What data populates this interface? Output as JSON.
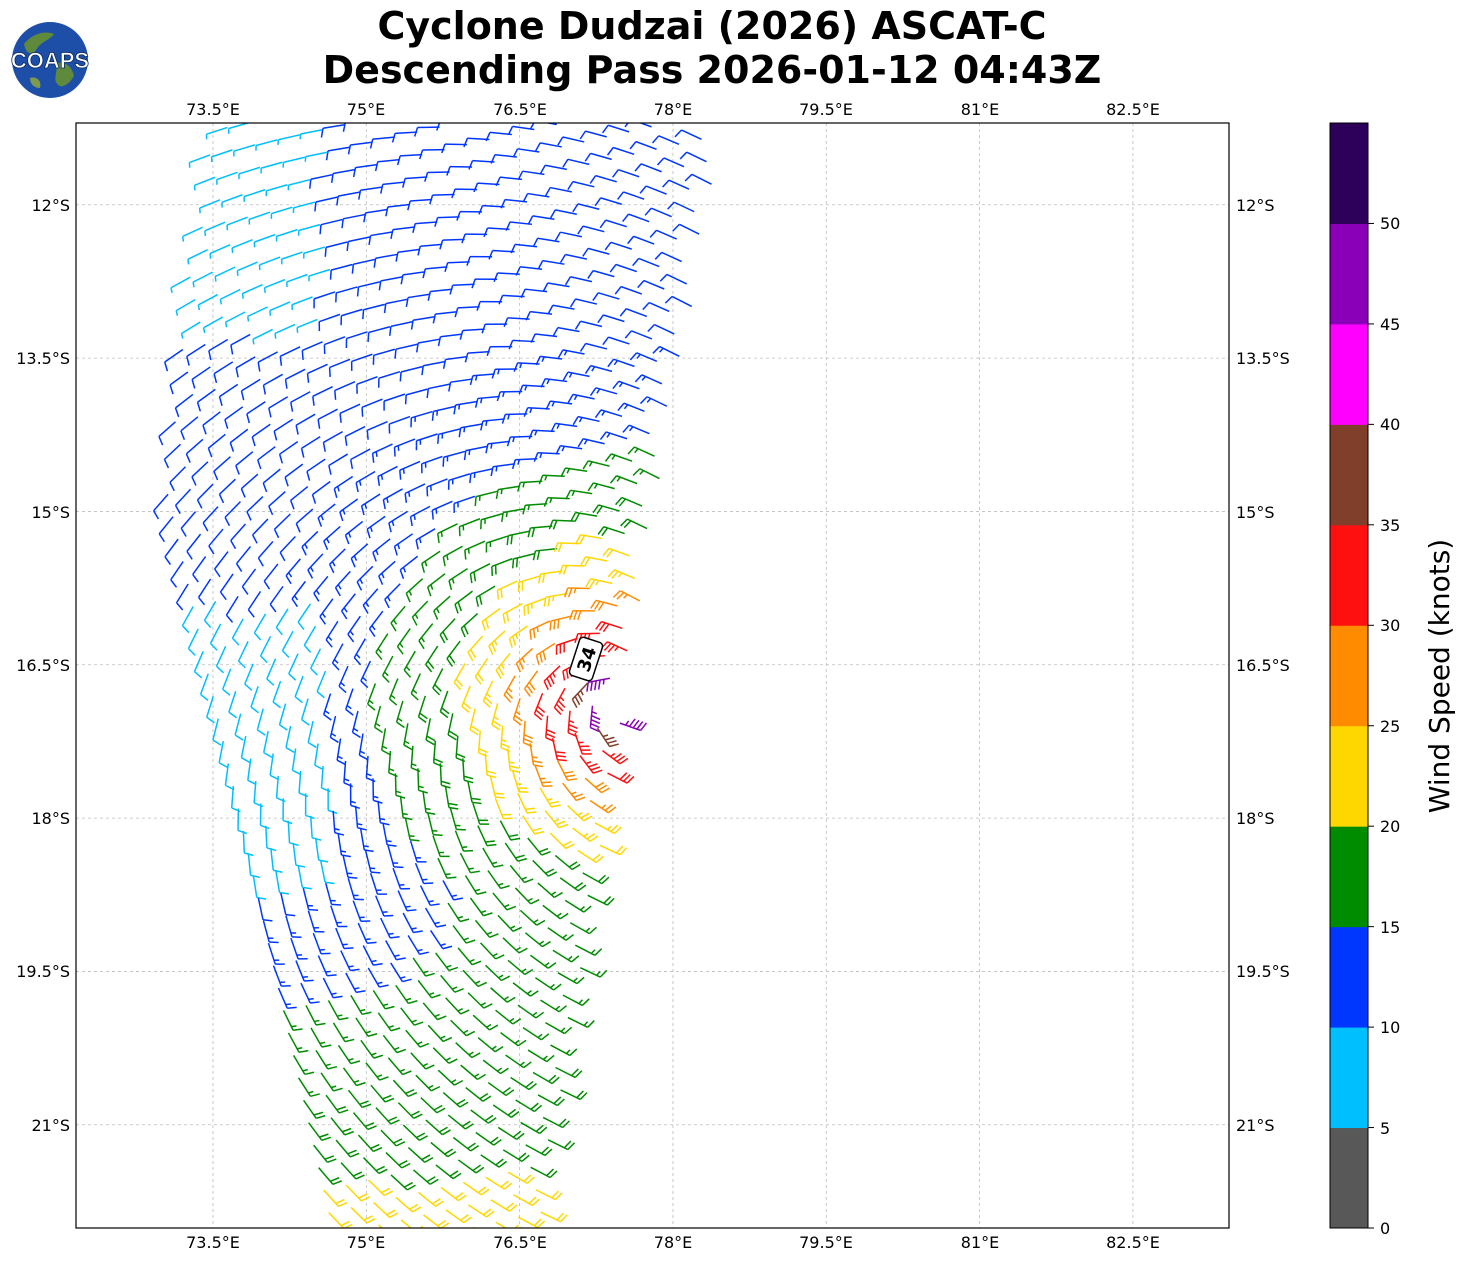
{
  "title": {
    "line1": "Cyclone Dudzai (2026) ASCAT-C",
    "line2": "Descending Pass 2026-01-12 04:43Z"
  },
  "logo": {
    "text": "COAPS",
    "icon": "globe-logo-icon"
  },
  "axes": {
    "lon_ticks": [
      "73.5°E",
      "75°E",
      "76.5°E",
      "78°E",
      "79.5°E",
      "81°E",
      "82.5°E"
    ],
    "lat_ticks": [
      "12°S",
      "13.5°S",
      "15°S",
      "16.5°S",
      "18°S",
      "19.5°S",
      "21°S"
    ],
    "lon_range": [
      72.16,
      83.44
    ],
    "lat_range": [
      -22.01,
      -11.2
    ],
    "grid": true
  },
  "storm_marker": {
    "label": "34"
  },
  "colorbar": {
    "label": "Wind Speed (knots)",
    "tick_labels": [
      "0",
      "5",
      "10",
      "15",
      "20",
      "25",
      "30",
      "35",
      "40",
      "45",
      "50"
    ],
    "bins": [
      {
        "min": 0,
        "max": 5,
        "color": "#585858"
      },
      {
        "min": 5,
        "max": 10,
        "color": "#00bfff"
      },
      {
        "min": 10,
        "max": 15,
        "color": "#0037ff"
      },
      {
        "min": 15,
        "max": 20,
        "color": "#008c00"
      },
      {
        "min": 20,
        "max": 25,
        "color": "#ffd700"
      },
      {
        "min": 25,
        "max": 30,
        "color": "#ff8c00"
      },
      {
        "min": 30,
        "max": 35,
        "color": "#ff1010"
      },
      {
        "min": 35,
        "max": 40,
        "color": "#7f3f2a"
      },
      {
        "min": 40,
        "max": 45,
        "color": "#ff00ff"
      },
      {
        "min": 45,
        "max": 50,
        "color": "#8a00b8"
      },
      {
        "min": 50,
        "max": 55,
        "color": "#2d005a"
      }
    ]
  }
}
